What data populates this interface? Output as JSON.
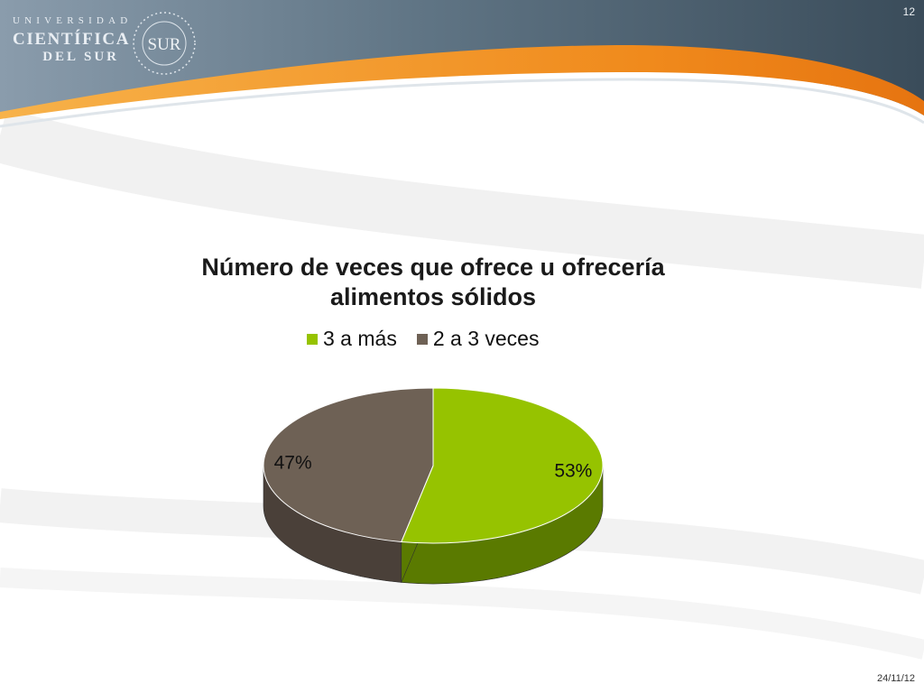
{
  "header": {
    "logo_line1": "UNIVERSIDAD",
    "logo_line2": "CIENTÍFICA",
    "logo_line3": "DEL SUR",
    "seal_text": "SUR",
    "slide_number": "12"
  },
  "footer": {
    "date": "24/11/12"
  },
  "colors": {
    "header_dark": "#3e5160",
    "header_light": "#7b8f9f",
    "accent_orange": "#f08a1c",
    "series_green": "#96c300",
    "series_gray": "#6e6155"
  },
  "chart_data": {
    "type": "pie",
    "title": "Número de veces que ofrece u ofrecería alimentos sólidos",
    "title_lines": [
      "Número de veces que ofrece u ofrecería",
      "alimentos sólidos"
    ],
    "legend_position": "top",
    "style": "3d",
    "slices": [
      {
        "name": "3 a más",
        "value": 53,
        "label": "53%",
        "color": "#96c300",
        "side_color": "#5a7a00"
      },
      {
        "name": "2 a 3 veces",
        "value": 47,
        "label": "47%",
        "color": "#6e6155",
        "side_color": "#4a4039"
      }
    ]
  }
}
